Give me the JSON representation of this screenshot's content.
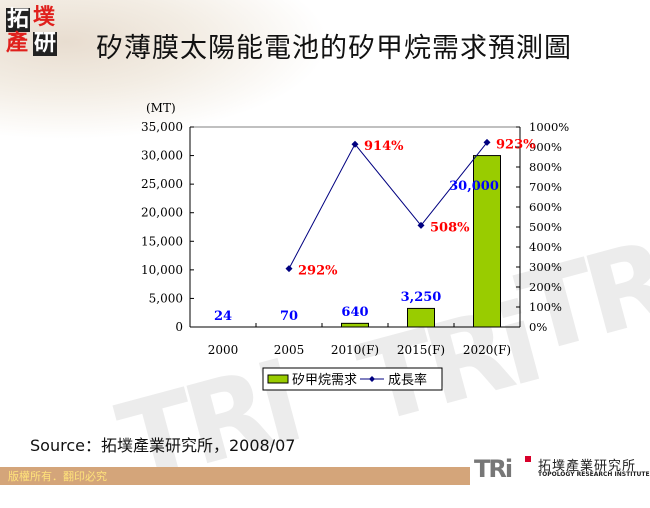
{
  "header": {
    "logo_chars": [
      "拓",
      "墣",
      "產",
      "研"
    ],
    "title": "矽薄膜太陽能電池的矽甲烷需求預測圖"
  },
  "chart_data": {
    "type": "bar",
    "title": "矽薄膜太陽能電池的矽甲烷需求預測圖",
    "categories": [
      "2000",
      "2005",
      "2010(F)",
      "2015(F)",
      "2020(F)"
    ],
    "series": [
      {
        "name": "矽甲烷需求",
        "type": "bar",
        "axis": "left",
        "color": "#99cc00",
        "values": [
          24,
          70,
          640,
          3250,
          30000
        ],
        "labels": [
          "24",
          "70",
          "640",
          "3,250",
          "30,000"
        ],
        "label_color": "#0000ff"
      },
      {
        "name": "成長率",
        "type": "line",
        "axis": "right",
        "color": "#000080",
        "values": [
          null,
          292,
          914,
          508,
          923
        ],
        "labels": [
          "",
          "292%",
          "914%",
          "508%",
          "923%"
        ],
        "label_color": "#ff0000"
      }
    ],
    "ylabel": "(MT)",
    "ylim": [
      0,
      35000
    ],
    "yticks": [
      "0",
      "5,000",
      "10,000",
      "15,000",
      "20,000",
      "25,000",
      "30,000",
      "35,000"
    ],
    "y2lim": [
      0,
      1000
    ],
    "y2ticks": [
      "0%",
      "100%",
      "200%",
      "300%",
      "400%",
      "500%",
      "600%",
      "700%",
      "800%",
      "900%",
      "1000%"
    ],
    "grid": false,
    "legend_position": "bottom"
  },
  "source": "Source：拓墣產業研究所，2008/07",
  "footer": {
    "copyright": "版權所有．翻印必究",
    "brand_mark": "TRi",
    "brand_cn": "拓墣產業研究所",
    "brand_en": "TOPOLOGY RESEARCH INSTITUTE"
  },
  "watermark": "TRi"
}
